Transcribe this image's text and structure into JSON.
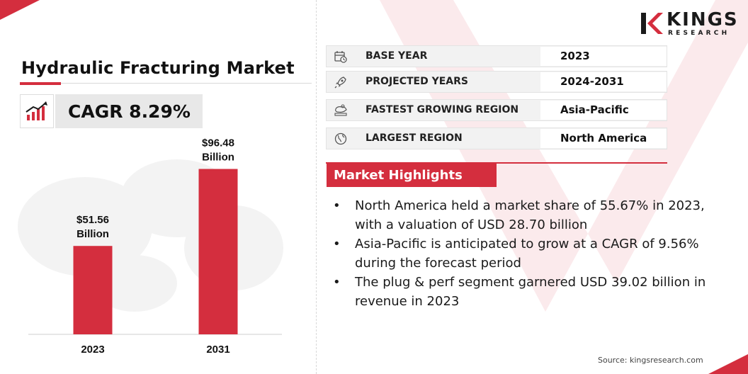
{
  "header": {
    "title": "Hydraulic Fracturing Market",
    "cagr": "CAGR 8.29%"
  },
  "logo": {
    "name": "KINGS",
    "tagline": "RESEARCH"
  },
  "info_rows": [
    {
      "icon": "calendar-clock-icon",
      "label": "BASE YEAR",
      "value": "2023"
    },
    {
      "icon": "rocket-icon",
      "label": "PROJECTED YEARS",
      "value": "2024-2031"
    },
    {
      "icon": "region-map-icon",
      "label": "FASTEST GROWING REGION",
      "value": "Asia-Pacific"
    },
    {
      "icon": "globe-icon",
      "label": "LARGEST REGION",
      "value": "North America"
    }
  ],
  "highlights": {
    "heading": "Market Highlights",
    "items": [
      "North America held a market share of 55.67% in 2023, with a valuation of USD 28.70 billion",
      "Asia-Pacific is anticipated to grow at a CAGR of 9.56% during the forecast period",
      "The plug & perf segment garnered USD 39.02 billion in revenue in 2023"
    ]
  },
  "source": "Source: kingsresearch.com",
  "colors": {
    "accent": "#d42e3e",
    "panel": "#e8e8e8",
    "row_bg": "#f2f2f2"
  },
  "chart_data": {
    "type": "bar",
    "categories": [
      "2023",
      "2031"
    ],
    "values": [
      51.56,
      96.48
    ],
    "data_labels": [
      [
        "$51.56",
        "Billion"
      ],
      [
        "$96.48",
        "Billion"
      ]
    ],
    "title": "",
    "xlabel": "",
    "ylabel": "",
    "unit": "USD Billion",
    "ylim": [
      0,
      100
    ],
    "grid": false,
    "color": "#d42e3e"
  }
}
